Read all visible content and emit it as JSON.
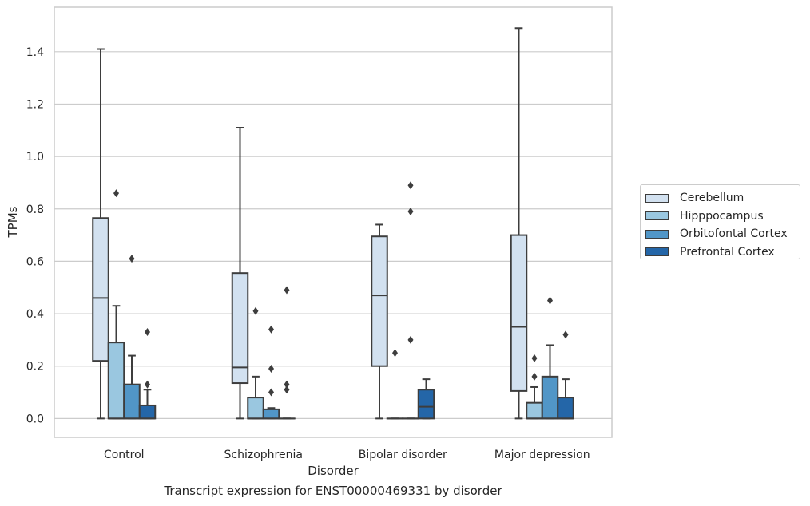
{
  "chart_data": {
    "type": "box",
    "title": "",
    "caption": "Transcript expression for ENST00000469331 by disorder",
    "xlabel": "Disorder",
    "ylabel": "TPMs",
    "ylim": [
      -0.072,
      1.57
    ],
    "yticks": [
      "0.0",
      "0.2",
      "0.4",
      "0.6",
      "0.8",
      "1.0",
      "1.2",
      "1.4"
    ],
    "ytick_values": [
      0.0,
      0.2,
      0.4,
      0.6,
      0.8,
      1.0,
      1.2,
      1.4
    ],
    "grid": "horizontal",
    "legend_placement": "right",
    "categories": [
      "Control",
      "Schizophrenia",
      "Bipolar disorder",
      "Major depression"
    ],
    "series": [
      {
        "name": "Cerebellum",
        "color": "#d2e1f0",
        "boxes": [
          {
            "q1": 0.22,
            "median": 0.46,
            "q3": 0.765,
            "whisker_low": 0.0,
            "whisker_high": 1.41,
            "outliers": []
          },
          {
            "q1": 0.135,
            "median": 0.195,
            "q3": 0.555,
            "whisker_low": 0.0,
            "whisker_high": 1.11,
            "outliers": []
          },
          {
            "q1": 0.2,
            "median": 0.47,
            "q3": 0.695,
            "whisker_low": 0.0,
            "whisker_high": 0.74,
            "outliers": []
          },
          {
            "q1": 0.105,
            "median": 0.35,
            "q3": 0.7,
            "whisker_low": 0.0,
            "whisker_high": 1.49,
            "outliers": []
          }
        ]
      },
      {
        "name": "Hipppocampus",
        "color": "#9ac7e0",
        "boxes": [
          {
            "q1": 0.0,
            "median": 0.0,
            "q3": 0.29,
            "whisker_low": 0.0,
            "whisker_high": 0.43,
            "outliers": [
              0.86
            ]
          },
          {
            "q1": 0.0,
            "median": 0.0,
            "q3": 0.08,
            "whisker_low": 0.0,
            "whisker_high": 0.16,
            "outliers": [
              0.41
            ]
          },
          {
            "q1": 0.0,
            "median": 0.0,
            "q3": 0.0,
            "whisker_low": 0.0,
            "whisker_high": 0.0,
            "outliers": [
              0.25
            ]
          },
          {
            "q1": 0.0,
            "median": 0.0,
            "q3": 0.06,
            "whisker_low": 0.0,
            "whisker_high": 0.12,
            "outliers": [
              0.23,
              0.16
            ]
          }
        ]
      },
      {
        "name": "Orbitofontal Cortex",
        "color": "#5196c7",
        "boxes": [
          {
            "q1": 0.0,
            "median": 0.0,
            "q3": 0.13,
            "whisker_low": 0.0,
            "whisker_high": 0.24,
            "outliers": [
              0.61
            ]
          },
          {
            "q1": 0.0,
            "median": 0.0,
            "q3": 0.035,
            "whisker_low": 0.0,
            "whisker_high": 0.04,
            "outliers": [
              0.34,
              0.19,
              0.1
            ]
          },
          {
            "q1": 0.0,
            "median": 0.0,
            "q3": 0.0,
            "whisker_low": 0.0,
            "whisker_high": 0.0,
            "outliers": [
              0.89,
              0.79,
              0.3
            ]
          },
          {
            "q1": 0.0,
            "median": 0.0,
            "q3": 0.16,
            "whisker_low": 0.0,
            "whisker_high": 0.28,
            "outliers": [
              0.45
            ]
          }
        ]
      },
      {
        "name": "Prefrontal Cortex",
        "color": "#2466a8",
        "boxes": [
          {
            "q1": 0.0,
            "median": 0.0,
            "q3": 0.05,
            "whisker_low": 0.0,
            "whisker_high": 0.11,
            "outliers": [
              0.33,
              0.13
            ]
          },
          {
            "q1": 0.0,
            "median": 0.0,
            "q3": 0.0,
            "whisker_low": 0.0,
            "whisker_high": 0.0,
            "outliers": [
              0.49,
              0.13,
              0.11
            ]
          },
          {
            "q1": 0.0,
            "median": 0.045,
            "q3": 0.11,
            "whisker_low": 0.0,
            "whisker_high": 0.15,
            "outliers": []
          },
          {
            "q1": 0.0,
            "median": 0.0,
            "q3": 0.08,
            "whisker_low": 0.0,
            "whisker_high": 0.15,
            "outliers": [
              0.32
            ]
          }
        ]
      }
    ]
  }
}
